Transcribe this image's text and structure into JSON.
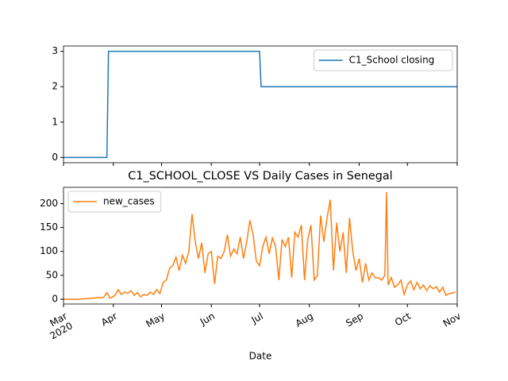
{
  "chart_data": [
    {
      "type": "line",
      "x": [
        "2020-03-01",
        "2020-03-28",
        "2020-03-29",
        "2020-07-01",
        "2020-07-02",
        "2020-11-01"
      ],
      "series": [
        {
          "name": "C1_School closing",
          "color": "#1f77b4",
          "values": [
            0,
            0,
            3,
            3,
            2,
            2
          ]
        }
      ],
      "xlim": [
        "2020-03-01",
        "2020-11-01"
      ],
      "ylim": [
        -0.15,
        3.15
      ],
      "yticks": [
        0,
        1,
        2,
        3
      ],
      "legend": "upper right"
    },
    {
      "type": "line",
      "title": "C1_SCHOOL_CLOSE VS Daily Cases in Senegal",
      "xlabel": "Date",
      "x": [
        "2020-03-01",
        "2020-03-05",
        "2020-03-10",
        "2020-03-14",
        "2020-03-18",
        "2020-03-22",
        "2020-03-26",
        "2020-03-28",
        "2020-03-30",
        "2020-04-02",
        "2020-04-04",
        "2020-04-06",
        "2020-04-08",
        "2020-04-10",
        "2020-04-12",
        "2020-04-14",
        "2020-04-16",
        "2020-04-18",
        "2020-04-20",
        "2020-04-22",
        "2020-04-24",
        "2020-04-26",
        "2020-04-28",
        "2020-04-30",
        "2020-05-02",
        "2020-05-04",
        "2020-05-06",
        "2020-05-08",
        "2020-05-10",
        "2020-05-12",
        "2020-05-14",
        "2020-05-16",
        "2020-05-18",
        "2020-05-20",
        "2020-05-22",
        "2020-05-24",
        "2020-05-26",
        "2020-05-28",
        "2020-05-30",
        "2020-06-01",
        "2020-06-03",
        "2020-06-05",
        "2020-06-07",
        "2020-06-09",
        "2020-06-11",
        "2020-06-13",
        "2020-06-15",
        "2020-06-17",
        "2020-06-19",
        "2020-06-21",
        "2020-06-23",
        "2020-06-25",
        "2020-06-27",
        "2020-06-29",
        "2020-07-01",
        "2020-07-03",
        "2020-07-05",
        "2020-07-07",
        "2020-07-09",
        "2020-07-11",
        "2020-07-13",
        "2020-07-15",
        "2020-07-17",
        "2020-07-19",
        "2020-07-21",
        "2020-07-23",
        "2020-07-25",
        "2020-07-27",
        "2020-07-29",
        "2020-07-31",
        "2020-08-02",
        "2020-08-04",
        "2020-08-06",
        "2020-08-08",
        "2020-08-10",
        "2020-08-12",
        "2020-08-14",
        "2020-08-16",
        "2020-08-18",
        "2020-08-20",
        "2020-08-22",
        "2020-08-24",
        "2020-08-26",
        "2020-08-28",
        "2020-08-30",
        "2020-09-01",
        "2020-09-03",
        "2020-09-05",
        "2020-09-07",
        "2020-09-09",
        "2020-09-11",
        "2020-09-13",
        "2020-09-15",
        "2020-09-17",
        "2020-09-18",
        "2020-09-19",
        "2020-09-21",
        "2020-09-23",
        "2020-09-25",
        "2020-09-27",
        "2020-09-29",
        "2020-10-01",
        "2020-10-03",
        "2020-10-05",
        "2020-10-07",
        "2020-10-09",
        "2020-10-11",
        "2020-10-13",
        "2020-10-15",
        "2020-10-17",
        "2020-10-19",
        "2020-10-21",
        "2020-10-23",
        "2020-10-25",
        "2020-10-27",
        "2020-10-29",
        "2020-10-31"
      ],
      "series": [
        {
          "name": "new_cases",
          "color": "#ff7f0e",
          "values": [
            0,
            0,
            0,
            1,
            2,
            3,
            4,
            14,
            2,
            8,
            20,
            10,
            15,
            12,
            18,
            8,
            14,
            5,
            10,
            8,
            15,
            10,
            20,
            12,
            35,
            40,
            65,
            70,
            88,
            60,
            92,
            75,
            100,
            178,
            120,
            85,
            118,
            55,
            95,
            100,
            32,
            90,
            85,
            100,
            135,
            90,
            105,
            95,
            130,
            85,
            120,
            165,
            135,
            80,
            70,
            110,
            130,
            95,
            128,
            110,
            40,
            125,
            110,
            130,
            45,
            140,
            130,
            155,
            40,
            125,
            155,
            40,
            50,
            175,
            120,
            170,
            208,
            60,
            160,
            100,
            140,
            55,
            170,
            100,
            60,
            85,
            35,
            75,
            40,
            55,
            45,
            45,
            40,
            50,
            224,
            30,
            45,
            25,
            30,
            40,
            10,
            30,
            38,
            20,
            35,
            22,
            30,
            18,
            28,
            22,
            26,
            15,
            25,
            8,
            12,
            13,
            15
          ]
        }
      ],
      "xlim": [
        "2020-03-01",
        "2020-11-01"
      ],
      "ylim": [
        -10,
        234
      ],
      "yticks": [
        0,
        50,
        100,
        150,
        200
      ],
      "xticks": [
        {
          "value": "2020-03-01",
          "label": "Mar\n2020"
        },
        {
          "value": "2020-04-01",
          "label": "Apr"
        },
        {
          "value": "2020-05-01",
          "label": "May"
        },
        {
          "value": "2020-06-01",
          "label": "Jun"
        },
        {
          "value": "2020-07-01",
          "label": "Jul"
        },
        {
          "value": "2020-08-01",
          "label": "Aug"
        },
        {
          "value": "2020-09-01",
          "label": "Sep"
        },
        {
          "value": "2020-10-01",
          "label": "Oct"
        },
        {
          "value": "2020-11-01",
          "label": "Nov"
        }
      ],
      "legend": "upper left"
    }
  ]
}
